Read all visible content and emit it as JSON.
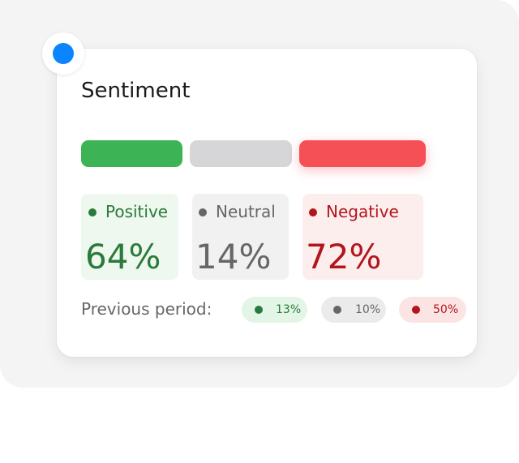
{
  "card": {
    "title": "Sentiment",
    "metrics": [
      {
        "label": "Positive",
        "value": "64%"
      },
      {
        "label": "Neutral",
        "value": "14%"
      },
      {
        "label": "Negative",
        "value": "72%"
      }
    ],
    "previous_label": "Previous period:",
    "previous": [
      "13%",
      "10%",
      "50%"
    ]
  }
}
